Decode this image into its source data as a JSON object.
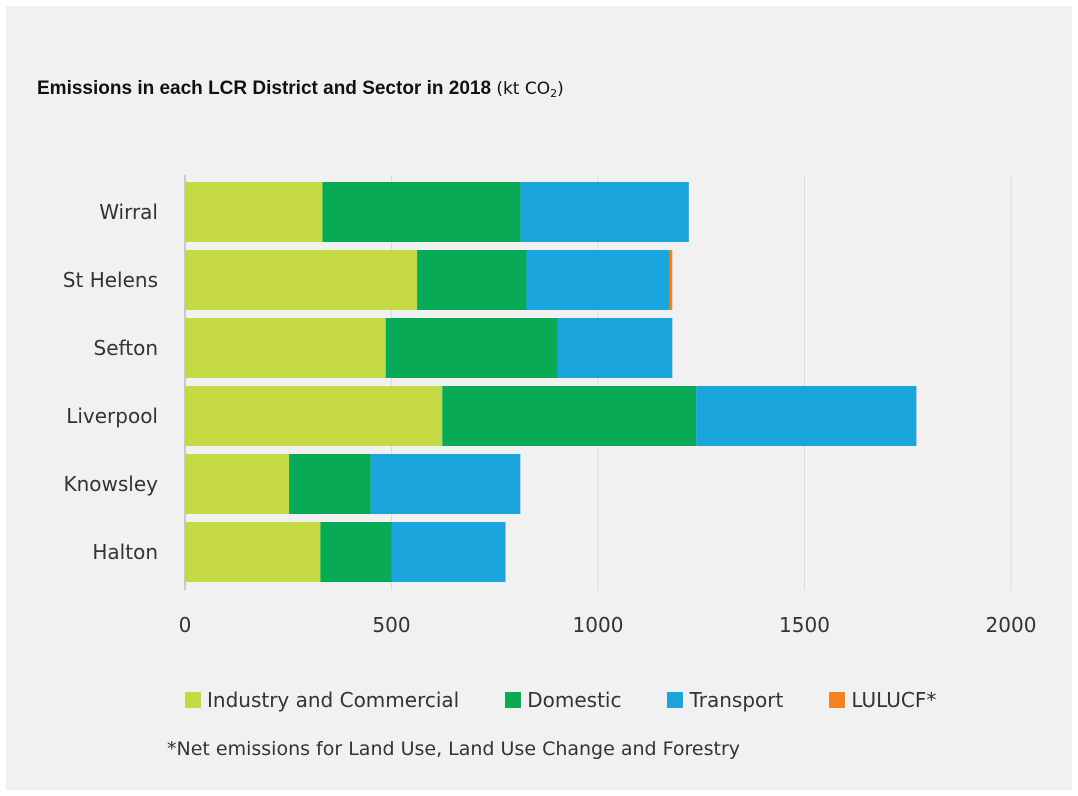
{
  "chart_data": {
    "type": "bar",
    "orientation": "horizontal",
    "stacked": true,
    "title": {
      "main": "Emissions in each LCR District and Sector in 2018",
      "unit_prefix": "(kt CO",
      "unit_subscript": "2",
      "unit_suffix": ")"
    },
    "categories": [
      "Wirral",
      "St Helens",
      "Sefton",
      "Liverpool",
      "Knowsley",
      "Halton"
    ],
    "series": [
      {
        "name": "Industry and Commercial",
        "color": "#c5d943",
        "values": [
          333,
          562,
          486,
          623,
          252,
          328
        ]
      },
      {
        "name": "Domestic",
        "color": "#09aa55",
        "values": [
          480,
          265,
          417,
          615,
          198,
          172
        ]
      },
      {
        "name": "Transport",
        "color": "#1aa5dd",
        "values": [
          407,
          347,
          277,
          533,
          362,
          276
        ]
      },
      {
        "name": "LULUCF*",
        "color": "#f4821f",
        "values": [
          0,
          6,
          0,
          0,
          0,
          0
        ]
      }
    ],
    "xlim": [
      0,
      2000
    ],
    "xticks": [
      0,
      500,
      1000,
      1500,
      2000
    ],
    "grid": true,
    "legend_position": "bottom",
    "footnote": "*Net emissions for Land Use, Land Use Change and Forestry"
  }
}
